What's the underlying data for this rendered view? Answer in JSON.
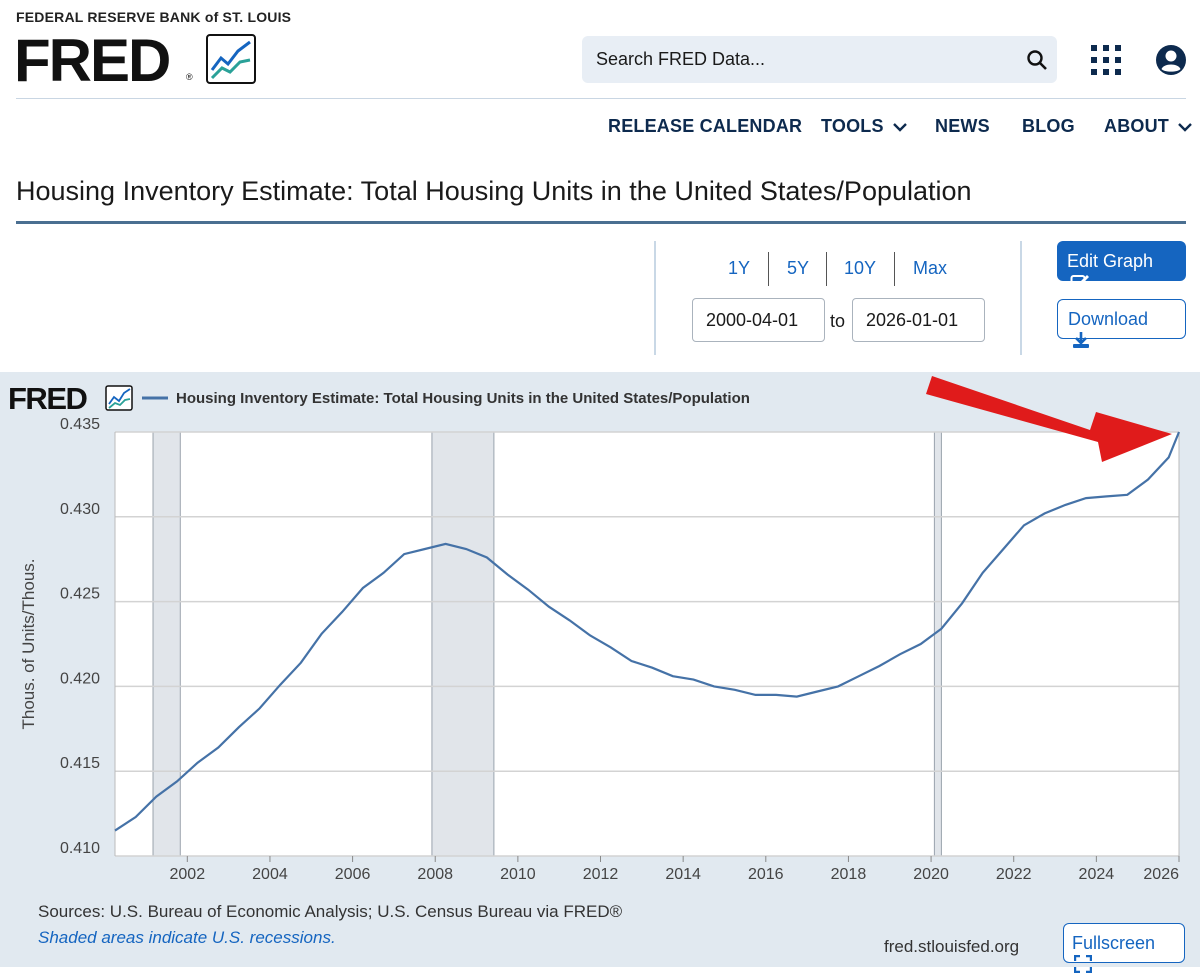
{
  "header": {
    "bank": "FEDERAL RESERVE BANK of ST. LOUIS",
    "logo": "FRED",
    "logo_reg": "®",
    "search_placeholder": "Search FRED Data...",
    "icons": [
      "search-icon",
      "apps-grid-icon",
      "account-icon",
      "fred-logo-icon"
    ]
  },
  "nav": {
    "items": [
      "RELEASE CALENDAR",
      "TOOLS",
      "NEWS",
      "BLOG",
      "ABOUT"
    ]
  },
  "page": {
    "title": "Housing Inventory Estimate: Total Housing Units in the United States/Population"
  },
  "controls": {
    "ranges": [
      "1Y",
      "5Y",
      "10Y",
      "Max"
    ],
    "date_start": "2000-04-01",
    "to_label": "to",
    "date_end": "2026-01-01",
    "edit_label": "Edit Graph",
    "download_label": "Download"
  },
  "chart_data": {
    "type": "line",
    "logo": "FRED",
    "legend": "Housing Inventory Estimate: Total Housing Units in the United States/Population",
    "ylabel": "Thous. of Units/Thous.",
    "xlim": [
      2000.25,
      2026.0
    ],
    "ylim": [
      0.41,
      0.435
    ],
    "yticks": [
      "0.410",
      "0.415",
      "0.420",
      "0.425",
      "0.430",
      "0.435"
    ],
    "xticks": [
      "2002",
      "2004",
      "2006",
      "2008",
      "2010",
      "2012",
      "2014",
      "2016",
      "2018",
      "2020",
      "2022",
      "2024",
      "2026"
    ],
    "grid": true,
    "line_color": "#4572a7",
    "recessions": [
      [
        2001.17,
        2001.83
      ],
      [
        2007.92,
        2009.42
      ],
      [
        2020.08,
        2020.25
      ]
    ],
    "series": [
      {
        "x": [
          2000.25,
          2000.75,
          2001.25,
          2001.75,
          2002.25,
          2002.75,
          2003.25,
          2003.75,
          2004.25,
          2004.75,
          2005.25,
          2005.75,
          2006.25,
          2006.75,
          2007.25,
          2007.75,
          2008.25,
          2008.75,
          2009.25,
          2009.75,
          2010.25,
          2010.75,
          2011.25,
          2011.75,
          2012.25,
          2012.75,
          2013.25,
          2013.75,
          2014.25,
          2014.75,
          2015.25,
          2015.75,
          2016.25,
          2016.75,
          2017.25,
          2017.75,
          2018.25,
          2018.75,
          2019.25,
          2019.75,
          2020.25,
          2020.75,
          2021.25,
          2021.75,
          2022.25,
          2022.75,
          2023.25,
          2023.75,
          2024.25,
          2024.75,
          2025.25,
          2025.75,
          2026.0
        ],
        "values": [
          0.4115,
          0.4123,
          0.4135,
          0.4144,
          0.4155,
          0.4164,
          0.4176,
          0.4187,
          0.4201,
          0.4214,
          0.4231,
          0.4244,
          0.4258,
          0.4267,
          0.4278,
          0.4281,
          0.4284,
          0.4281,
          0.4276,
          0.4266,
          0.4257,
          0.4247,
          0.4239,
          0.423,
          0.4223,
          0.4215,
          0.4211,
          0.4206,
          0.4204,
          0.42,
          0.4198,
          0.4195,
          0.4195,
          0.4194,
          0.4197,
          0.42,
          0.4206,
          0.4212,
          0.4219,
          0.4225,
          0.4234,
          0.4249,
          0.4267,
          0.4281,
          0.4295,
          0.4302,
          0.4307,
          0.4311,
          0.4312,
          0.4313,
          0.4322,
          0.4335,
          0.435
        ]
      }
    ]
  },
  "footer": {
    "sources": "Sources: U.S. Bureau of Economic Analysis; U.S. Census Bureau via FRED®",
    "recession_note": "Shaded areas indicate U.S. recessions.",
    "site": "fred.stlouisfed.org",
    "fullscreen_label": "Fullscreen"
  }
}
